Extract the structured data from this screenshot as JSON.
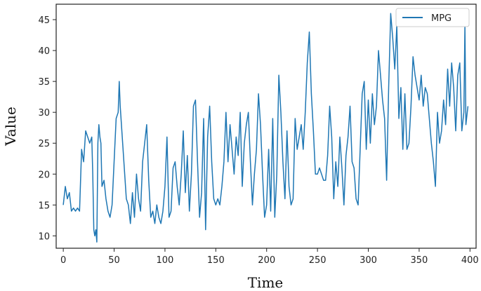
{
  "chart_data": {
    "type": "line",
    "title": "",
    "xlabel": "Time",
    "ylabel": "Value",
    "xlim": [
      -7,
      406
    ],
    "ylim": [
      8,
      47.5
    ],
    "x_ticks": [
      0,
      50,
      100,
      150,
      200,
      250,
      300,
      350,
      400
    ],
    "y_ticks": [
      10,
      15,
      20,
      25,
      30,
      35,
      40,
      45
    ],
    "grid": false,
    "legend": "top-right",
    "series": [
      {
        "name": "MPG",
        "color": "#1f77b4",
        "points": [
          [
            0,
            15
          ],
          [
            2,
            18
          ],
          [
            4,
            16
          ],
          [
            6,
            17
          ],
          [
            8,
            14
          ],
          [
            10,
            14.5
          ],
          [
            12,
            14
          ],
          [
            14,
            14.5
          ],
          [
            16,
            14
          ],
          [
            18,
            24
          ],
          [
            20,
            22
          ],
          [
            22,
            27
          ],
          [
            24,
            26
          ],
          [
            26,
            25
          ],
          [
            28,
            26
          ],
          [
            29,
            20
          ],
          [
            30,
            11
          ],
          [
            31,
            10
          ],
          [
            32,
            11
          ],
          [
            33,
            9
          ],
          [
            34,
            25
          ],
          [
            35,
            28
          ],
          [
            36,
            26
          ],
          [
            37,
            25
          ],
          [
            38,
            18
          ],
          [
            40,
            19
          ],
          [
            42,
            16
          ],
          [
            44,
            14
          ],
          [
            46,
            13
          ],
          [
            48,
            15
          ],
          [
            50,
            22
          ],
          [
            52,
            29
          ],
          [
            54,
            30
          ],
          [
            55,
            35
          ],
          [
            56,
            31
          ],
          [
            58,
            26
          ],
          [
            60,
            21
          ],
          [
            62,
            16
          ],
          [
            64,
            15
          ],
          [
            66,
            12
          ],
          [
            68,
            17
          ],
          [
            70,
            13
          ],
          [
            72,
            20
          ],
          [
            74,
            16
          ],
          [
            76,
            14
          ],
          [
            78,
            22
          ],
          [
            80,
            25
          ],
          [
            82,
            28
          ],
          [
            84,
            19
          ],
          [
            86,
            13
          ],
          [
            88,
            14
          ],
          [
            90,
            12
          ],
          [
            92,
            15
          ],
          [
            94,
            13
          ],
          [
            96,
            12
          ],
          [
            98,
            14
          ],
          [
            100,
            18
          ],
          [
            102,
            26
          ],
          [
            104,
            13
          ],
          [
            106,
            14
          ],
          [
            108,
            21
          ],
          [
            110,
            22
          ],
          [
            112,
            18
          ],
          [
            114,
            15
          ],
          [
            116,
            20
          ],
          [
            118,
            27
          ],
          [
            120,
            17
          ],
          [
            122,
            23
          ],
          [
            124,
            14
          ],
          [
            126,
            20
          ],
          [
            128,
            31
          ],
          [
            130,
            32
          ],
          [
            132,
            22
          ],
          [
            134,
            13
          ],
          [
            136,
            17
          ],
          [
            138,
            29
          ],
          [
            140,
            11
          ],
          [
            142,
            26
          ],
          [
            144,
            31
          ],
          [
            146,
            22
          ],
          [
            148,
            16
          ],
          [
            150,
            15
          ],
          [
            152,
            16
          ],
          [
            154,
            15
          ],
          [
            156,
            18
          ],
          [
            158,
            22
          ],
          [
            160,
            30
          ],
          [
            162,
            22
          ],
          [
            164,
            28
          ],
          [
            166,
            24
          ],
          [
            168,
            20
          ],
          [
            170,
            26
          ],
          [
            172,
            23
          ],
          [
            174,
            30
          ],
          [
            176,
            18
          ],
          [
            178,
            25
          ],
          [
            180,
            28
          ],
          [
            182,
            30
          ],
          [
            184,
            22
          ],
          [
            186,
            15
          ],
          [
            188,
            20
          ],
          [
            190,
            24
          ],
          [
            192,
            33
          ],
          [
            194,
            28
          ],
          [
            196,
            20
          ],
          [
            198,
            13
          ],
          [
            200,
            15
          ],
          [
            202,
            24
          ],
          [
            204,
            14
          ],
          [
            206,
            29
          ],
          [
            208,
            13
          ],
          [
            210,
            20
          ],
          [
            212,
            36
          ],
          [
            214,
            30
          ],
          [
            216,
            22
          ],
          [
            218,
            16
          ],
          [
            220,
            27
          ],
          [
            222,
            18
          ],
          [
            224,
            15
          ],
          [
            226,
            16
          ],
          [
            228,
            29
          ],
          [
            230,
            24
          ],
          [
            232,
            26
          ],
          [
            234,
            28
          ],
          [
            236,
            24
          ],
          [
            238,
            30
          ],
          [
            240,
            38
          ],
          [
            242,
            43
          ],
          [
            244,
            33
          ],
          [
            246,
            27
          ],
          [
            248,
            20
          ],
          [
            250,
            20
          ],
          [
            252,
            21
          ],
          [
            254,
            20
          ],
          [
            256,
            19
          ],
          [
            258,
            19
          ],
          [
            260,
            23
          ],
          [
            262,
            31
          ],
          [
            264,
            26
          ],
          [
            266,
            16
          ],
          [
            268,
            22
          ],
          [
            270,
            18
          ],
          [
            272,
            26
          ],
          [
            274,
            21
          ],
          [
            276,
            15
          ],
          [
            278,
            23
          ],
          [
            280,
            26
          ],
          [
            282,
            31
          ],
          [
            284,
            22
          ],
          [
            286,
            21
          ],
          [
            288,
            16
          ],
          [
            290,
            15
          ],
          [
            292,
            24
          ],
          [
            294,
            33
          ],
          [
            296,
            35
          ],
          [
            298,
            24
          ],
          [
            300,
            32
          ],
          [
            302,
            25
          ],
          [
            304,
            33
          ],
          [
            306,
            28
          ],
          [
            308,
            31
          ],
          [
            310,
            40
          ],
          [
            312,
            36
          ],
          [
            314,
            32
          ],
          [
            316,
            29
          ],
          [
            318,
            19
          ],
          [
            320,
            34
          ],
          [
            322,
            46
          ],
          [
            324,
            42
          ],
          [
            326,
            37
          ],
          [
            328,
            44
          ],
          [
            330,
            29
          ],
          [
            332,
            34
          ],
          [
            334,
            24
          ],
          [
            336,
            33
          ],
          [
            338,
            24
          ],
          [
            340,
            25
          ],
          [
            342,
            31
          ],
          [
            344,
            39
          ],
          [
            346,
            36
          ],
          [
            348,
            34
          ],
          [
            350,
            32
          ],
          [
            352,
            36
          ],
          [
            354,
            31
          ],
          [
            356,
            34
          ],
          [
            358,
            33
          ],
          [
            360,
            29
          ],
          [
            362,
            25
          ],
          [
            364,
            22
          ],
          [
            366,
            18
          ],
          [
            368,
            30
          ],
          [
            370,
            25
          ],
          [
            372,
            27
          ],
          [
            374,
            32
          ],
          [
            376,
            28
          ],
          [
            378,
            37
          ],
          [
            380,
            31
          ],
          [
            382,
            38
          ],
          [
            384,
            34
          ],
          [
            386,
            27
          ],
          [
            388,
            36
          ],
          [
            390,
            38
          ],
          [
            392,
            27
          ],
          [
            394,
            30
          ],
          [
            395,
            44
          ],
          [
            396,
            28
          ],
          [
            398,
            31
          ]
        ]
      }
    ]
  }
}
